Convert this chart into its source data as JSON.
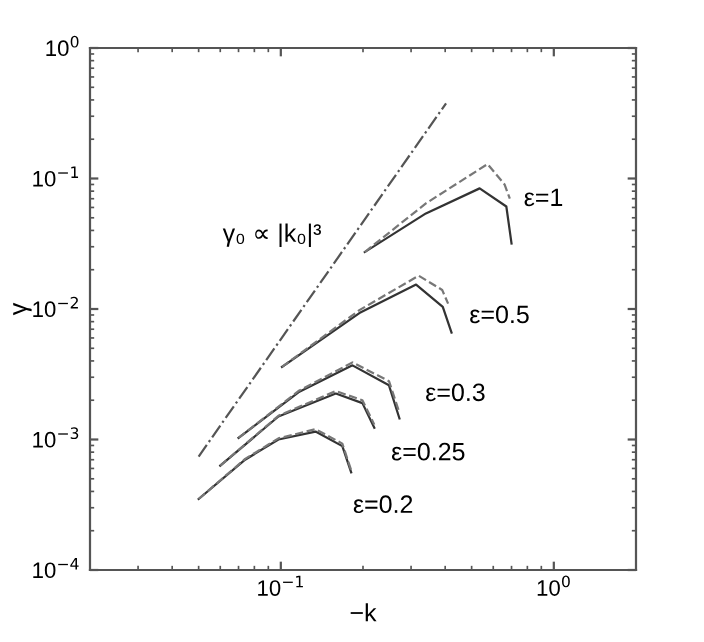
{
  "chart_data": {
    "type": "line",
    "xlabel": "−k",
    "ylabel": "γ",
    "log": "xy",
    "grid": false,
    "legend": false,
    "xlim": [
      0.02,
      2
    ],
    "ylim": [
      0.0001,
      1
    ],
    "xticks": [
      {
        "value": 0.1,
        "label": "10$^{−1}$"
      },
      {
        "value": 1,
        "label": "10$^{0}$"
      }
    ],
    "yticks": [
      {
        "value": 0.0001,
        "label": "10$^{−4}$"
      },
      {
        "value": 0.001,
        "label": "10$^{−3}$"
      },
      {
        "value": 0.01,
        "label": "10$^{−2}$"
      },
      {
        "value": 0.1,
        "label": "10$^{−1}$"
      },
      {
        "value": 1,
        "label": "10$^{0}$"
      }
    ],
    "series": [
      {
        "name": "γ₀ ∝ |k₀|³",
        "color": "#555555",
        "line_style": "dashdot",
        "x": [
          0.05,
          0.403
        ],
        "values": [
          0.00074,
          0.377
        ]
      },
      {
        "name": "ε=0.2",
        "color": "#333333",
        "line_style": "solid",
        "x": [
          0.05,
          0.074,
          0.098,
          0.134,
          0.168,
          0.181
        ],
        "values": [
          0.00035,
          0.0007,
          0.001,
          0.00115,
          0.00089,
          0.00056
        ]
      },
      {
        "color": "#777777",
        "line_style": "dashed",
        "x": [
          0.05,
          0.074,
          0.098,
          0.134,
          0.168,
          0.181
        ],
        "values": [
          0.00035,
          0.00071,
          0.00102,
          0.0012,
          0.00093,
          0.00058
        ]
      },
      {
        "name": "ε=0.25",
        "color": "#333333",
        "line_style": "solid",
        "x": [
          0.06,
          0.098,
          0.159,
          0.199,
          0.22
        ],
        "values": [
          0.00063,
          0.0015,
          0.00225,
          0.0019,
          0.00123
        ]
      },
      {
        "color": "#777777",
        "line_style": "dashed",
        "x": [
          0.06,
          0.098,
          0.159,
          0.199,
          0.22
        ],
        "values": [
          0.00063,
          0.00152,
          0.00235,
          0.002,
          0.0013
        ]
      },
      {
        "name": "ε=0.3",
        "color": "#333333",
        "line_style": "solid",
        "x": [
          0.07,
          0.116,
          0.183,
          0.249,
          0.272
        ],
        "values": [
          0.00103,
          0.0023,
          0.0037,
          0.0026,
          0.00145
        ]
      },
      {
        "color": "#777777",
        "line_style": "dashed",
        "x": [
          0.07,
          0.116,
          0.183,
          0.249,
          0.272
        ],
        "values": [
          0.00103,
          0.00235,
          0.0039,
          0.0028,
          0.0016
        ]
      },
      {
        "name": "ε=0.5",
        "color": "#333333",
        "line_style": "solid",
        "x": [
          0.101,
          0.194,
          0.313,
          0.392,
          0.422
        ],
        "values": [
          0.0036,
          0.0093,
          0.0154,
          0.0104,
          0.0066
        ]
      },
      {
        "color": "#777777",
        "line_style": "dashed",
        "x": [
          0.101,
          0.194,
          0.32,
          0.39,
          0.41
        ],
        "values": [
          0.0036,
          0.0098,
          0.018,
          0.014,
          0.011
        ]
      },
      {
        "name": "ε=1",
        "color": "#333333",
        "line_style": "solid",
        "x": [
          0.203,
          0.34,
          0.535,
          0.67,
          0.7
        ],
        "values": [
          0.0273,
          0.054,
          0.084,
          0.061,
          0.0318
        ]
      },
      {
        "color": "#777777",
        "line_style": "dashed",
        "x": [
          0.203,
          0.34,
          0.572,
          0.66,
          0.69
        ],
        "values": [
          0.0273,
          0.0645,
          0.129,
          0.09,
          0.07
        ]
      }
    ]
  }
}
